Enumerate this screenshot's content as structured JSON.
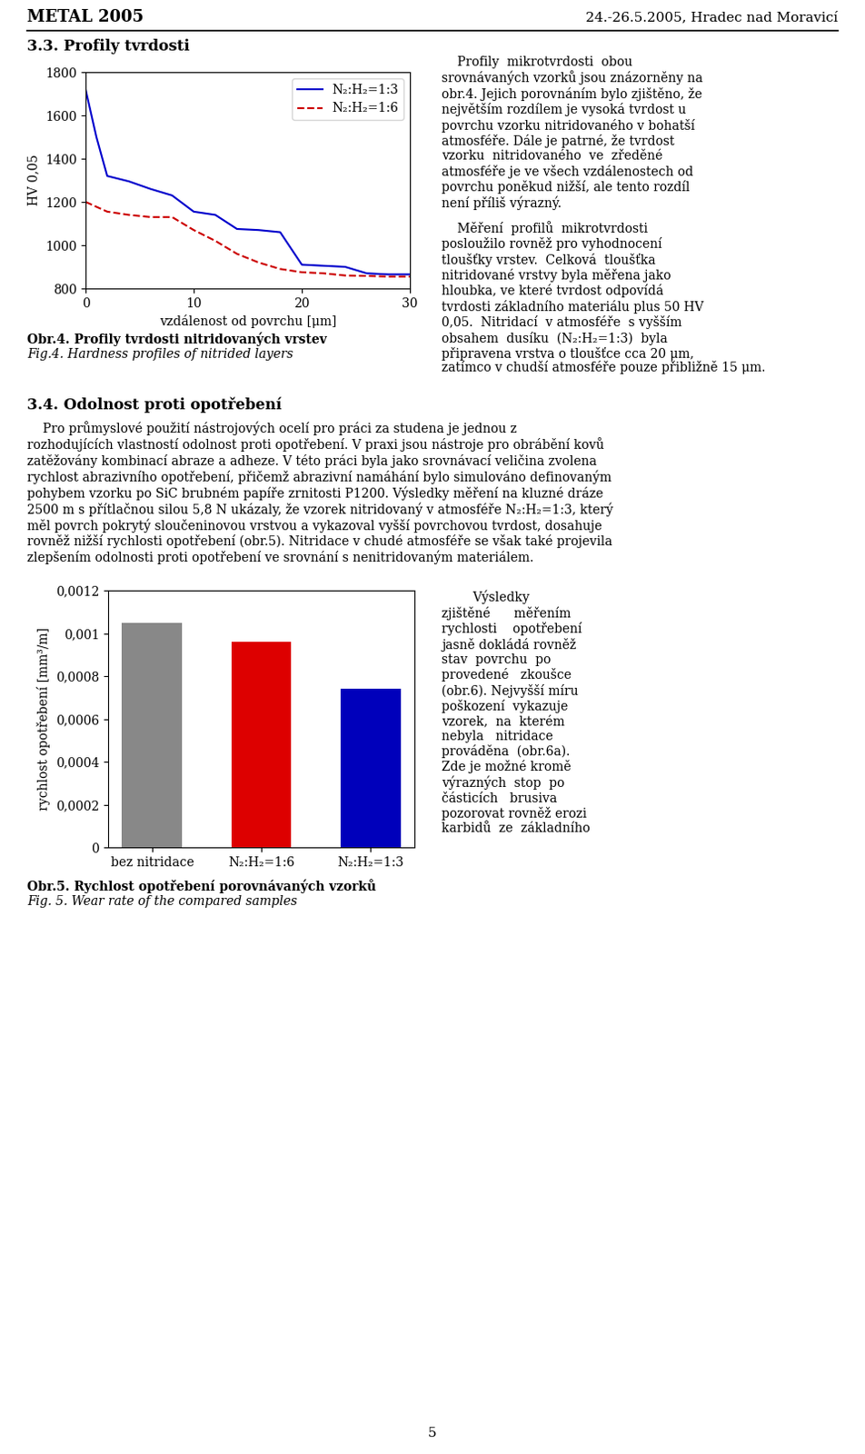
{
  "chart_data": [
    {
      "type": "line",
      "xlabel": "vzdálenost od povrchu [μm]",
      "ylabel": "HV 0,05",
      "xlim": [
        0,
        30
      ],
      "ylim": [
        800,
        1800
      ],
      "xticks": [
        0,
        10,
        20,
        30
      ],
      "yticks": [
        800,
        1000,
        1200,
        1400,
        1600,
        1800
      ],
      "legend": "upper right",
      "series": [
        {
          "name": "N₂:H₂=1:3",
          "color": "#0000cc",
          "line_style": "solid",
          "x": [
            0,
            1,
            2,
            4,
            6,
            8,
            10,
            12,
            14,
            16,
            18,
            20,
            22,
            24,
            26,
            28,
            30
          ],
          "values": [
            1720,
            1500,
            1320,
            1295,
            1260,
            1230,
            1155,
            1140,
            1075,
            1070,
            1060,
            910,
            905,
            900,
            870,
            865,
            865
          ]
        },
        {
          "name": "N₂:H₂=1:6",
          "color": "#cc0000",
          "line_style": "dashed",
          "x": [
            0,
            2,
            4,
            6,
            8,
            10,
            12,
            14,
            16,
            18,
            20,
            22,
            24,
            26,
            28,
            30
          ],
          "values": [
            1200,
            1155,
            1140,
            1130,
            1130,
            1070,
            1020,
            960,
            920,
            890,
            875,
            870,
            860,
            858,
            855,
            855
          ]
        }
      ],
      "annotations": [
        "Obr.4. Profily tvrdosti nitridovaných vrstev",
        "Fig.4. Hardness profiles of nitrided layers"
      ]
    },
    {
      "type": "bar",
      "categories": [
        "bez nitridace",
        "N₂:H₂=1:6",
        "N₂:H₂=1:3"
      ],
      "values": [
        0.00105,
        0.00096,
        0.00074
      ],
      "colors": [
        "#888888",
        "#dd0000",
        "#0000bb"
      ],
      "ylabel": "rychlost opotřebení [mm³/m]",
      "ylim": [
        0,
        0.0012
      ],
      "yticks": [
        0,
        {
          "value": 0.0002,
          "label": "0,0002"
        },
        {
          "value": 0.0004,
          "label": "0,0004"
        },
        {
          "value": 0.0006,
          "label": "0,0006"
        },
        {
          "value": 0.0008,
          "label": "0,0008"
        },
        {
          "value": 0.001,
          "label": "0,001"
        },
        {
          "value": 0.0012,
          "label": "0,0012"
        }
      ],
      "annotations": [
        "Obr.5. Rychlost opotřebení porovnávaných vzorků",
        "Fig. 5. Wear rate of the compared samples"
      ]
    }
  ],
  "annotations": [
    "METAL 2005",
    "24.-26.5.2005, Hradec nad Moravicí",
    "3.3. Profily tvrdosti",
    "    Profily  mikrotvrdosti  obou\nsrovnávaných vzorků jsou znázorněny na\nobr.4. Jejich porovnáním bylo zjištěno, že\nnejvětším rozdílem je vysoká tvrdost u\npovrchu vzorku nitridovaného v bohatší\natmosféře. Dále je patrné, že tvrdost\nvzorku  nitridovaného  ve  zředěné\natmosféře je ve všech vzdálenostech od\npovrchu poněkud nižší, ale tento rozdíl\nnení příliš výrazný.",
    "    Měření  profilů  mikrotvrdosti\nposloužilo rovněž pro vyhodnocení\ntloušťky vrstev.  Celková  tloušťka\nnitridované vrstvy byla měřena jako\nhloubka, ve které tvrdost odpovídá\ntvrdosti základního materiálu plus 50 HV\n0,05.  Nitridací  v atmosféře  s vyšším\nobsahem  dusíku  (N₂:H₂=1:3)  byla\npřipravena vrstva o tloušťce cca 20 μm,",
    "zatímco v chudší atmosféře pouze přibližně 15 μm.",
    "3.4. Odolnost proti opotřebení",
    "    Pro průmyslové použití nástrojových ocelí pro práci za studena je jednou z\nrozhodujících vlastností odolnost proti opotřebení. V praxi jsou nástroje pro obrábění kovů\nzatěžovány kombinací abraze a adheze. V této práci byla jako srovnávací veličina zvolena\nrychlost abrazivního opotřebení, přičemž abrazivní namáhání bylo simulováno definovaným\npohybem vzorku po SiC brubném papíře zrnitosti P1200. Výsledky měření na kluzné dráze\n2500 m s přítlačnou silou 5,8 N ukázaly, že vzorek nitridovaný v atmosféře N₂:H₂=1:3, který\nměl povrch pokrytý sloučeninovou vrstvou a vykazoval vyšší povrchovou tvrdost, dosahuje\nrovněž nižší rychlosti opotřebení (obr.5). Nitridace v chudé atmosféře se však také projevila\nzlepšením odolnosti proti opotřebení ve srovnání s nenitridovaným materiálem.",
    "        Výsledky\nzjištěné      měřením\nrychlosti    opotřebení\njasně dokládá rovněž\nstav  povrchu  po\nprovedené   zkoušce\n(obr.6). Nejvyšší míru\npoškození  vykazuje\nvzorek,  na  kterém\nnebyla   nitridace\nprováděna  (obr.6a).\nZde je možné kromě\nvýrazných  stop  po\nčásticích   brusiva\npozorovat rovněž erozi\nkarbidů  ze  základního",
    "5"
  ]
}
